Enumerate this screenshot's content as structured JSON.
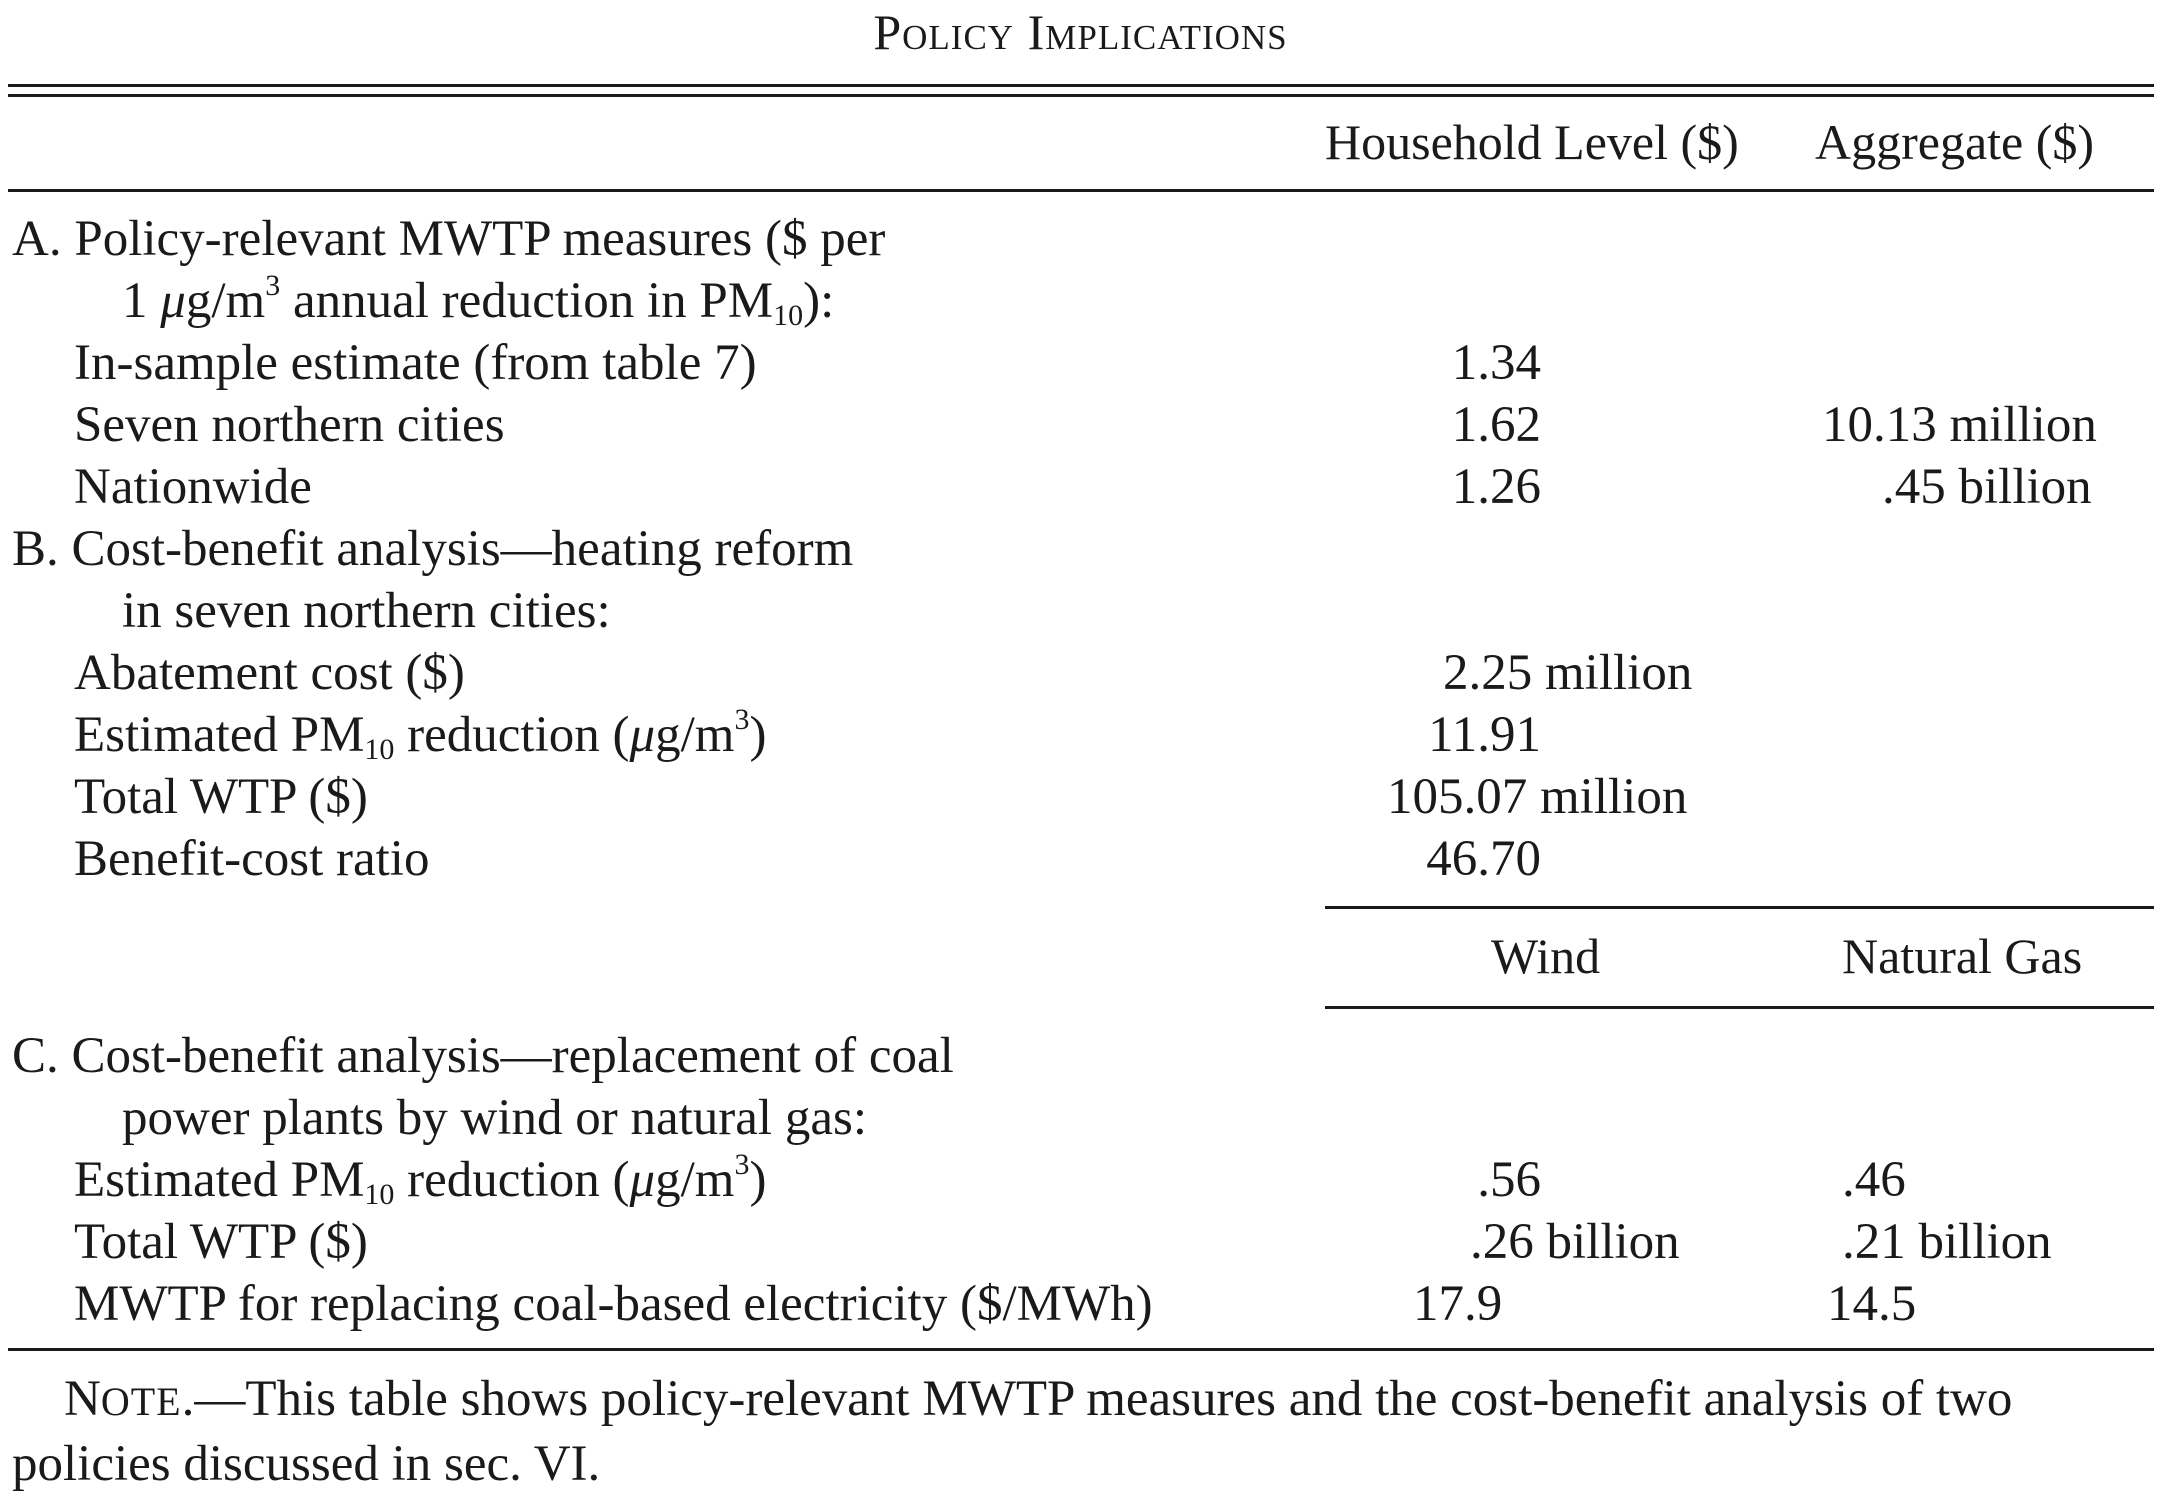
{
  "title": "Policy Implications",
  "columns_top": {
    "col1": "Household Level ($)",
    "col2": "Aggregate ($)"
  },
  "columns_bottom": {
    "col1": "Wind",
    "col2": "Natural Gas"
  },
  "sectionA": {
    "heading_line1": "A. Policy-relevant MWTP measures ($ per",
    "heading_line2_pre": "1 ",
    "heading_line2_mu": "μ",
    "heading_line2_mid": "g/m",
    "heading_line2_sup": "3",
    "heading_line2_post": " annual reduction in PM",
    "heading_line2_sub": "10",
    "heading_line2_end": "):",
    "rows": [
      {
        "label": "In-sample estimate (from table 7)",
        "col1": "1.34",
        "col1_suffix": "",
        "col2": "",
        "col2_suffix": ""
      },
      {
        "label": "Seven northern cities",
        "col1": "1.62",
        "col1_suffix": "",
        "col2": "10.13",
        "col2_suffix": "million"
      },
      {
        "label": "Nationwide",
        "col1": "1.26",
        "col1_suffix": "",
        "col2": ".45",
        "col2_suffix": "billion"
      }
    ]
  },
  "sectionB": {
    "heading_line1": "B. Cost-benefit analysis—heating reform",
    "heading_line2": "in seven northern cities:",
    "rows": [
      {
        "label": "Abatement cost ($)",
        "col1": "2.25",
        "col1_suffix": "million"
      },
      {
        "label_pre": "Estimated PM",
        "label_sub": "10",
        "label_mid": " reduction (",
        "label_mu": "μ",
        "label_unit": "g/m",
        "label_sup": "3",
        "label_end": ")",
        "col1": "11.91",
        "col1_suffix": ""
      },
      {
        "label": "Total WTP ($)",
        "col1": "105.07",
        "col1_suffix": "million"
      },
      {
        "label": "Benefit-cost ratio",
        "col1": "46.70",
        "col1_suffix": ""
      }
    ]
  },
  "sectionC": {
    "heading_line1": "C. Cost-benefit analysis—replacement of coal",
    "heading_line2": "power plants by wind or natural gas:",
    "rows": [
      {
        "label_pre": "Estimated PM",
        "label_sub": "10",
        "label_mid": " reduction (",
        "label_mu": "μ",
        "label_unit": "g/m",
        "label_sup": "3",
        "label_end": ")",
        "col1": ".56",
        "col1_suffix": "",
        "col2": ".46",
        "col2_suffix": ""
      },
      {
        "label": "Total WTP ($)",
        "col1": ".26",
        "col1_suffix": "billion",
        "col2": ".21",
        "col2_suffix": "billion"
      },
      {
        "label": "MWTP for replacing coal-based electricity ($/MWh)",
        "col1": "17.9",
        "col1_suffix": "",
        "col2": "14.5",
        "col2_suffix": ""
      }
    ]
  },
  "note": {
    "label_first": "N",
    "label_rest": "ote",
    "text": ".—This table shows policy-relevant MWTP measures and the cost-benefit analysis of two policies discussed in sec. VI."
  }
}
